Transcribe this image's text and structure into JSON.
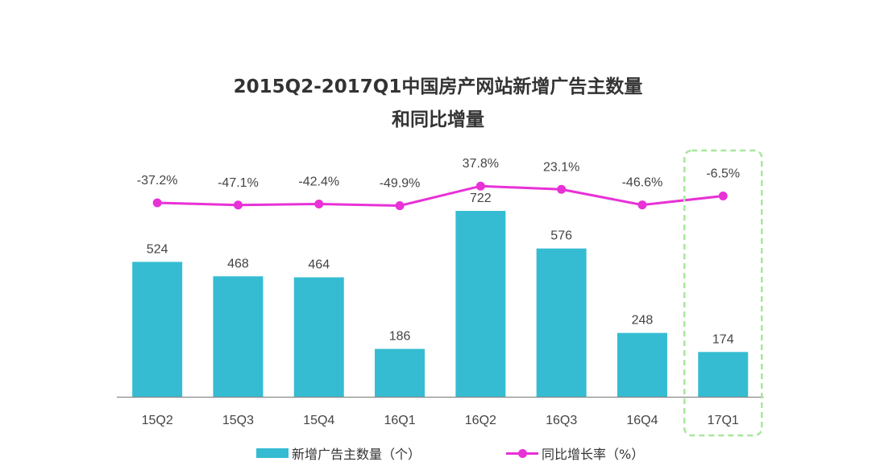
{
  "chart_data": {
    "type": "bar",
    "title": "2015Q2-2017Q1中国房产网站新增广告主数量",
    "subtitle": "和同比增量",
    "categories": [
      "15Q2",
      "15Q3",
      "15Q4",
      "16Q1",
      "16Q2",
      "16Q3",
      "16Q4",
      "17Q1"
    ],
    "series": [
      {
        "name": "新增广告主数量（个）",
        "type": "bar",
        "values": [
          524,
          468,
          464,
          186,
          722,
          576,
          248,
          174
        ],
        "labels": [
          "524",
          "468",
          "464",
          "186",
          "722",
          "576",
          "248",
          "174"
        ],
        "color": "#35bcd2"
      },
      {
        "name": "同比增长率（%）",
        "type": "line",
        "values": [
          -37.2,
          -47.1,
          -42.4,
          -49.9,
          37.8,
          23.1,
          -46.6,
          -6.5
        ],
        "labels": [
          "-37.2%",
          "-47.1%",
          "-42.4%",
          "-49.9%",
          "37.8%",
          "23.1%",
          "-46.6%",
          "-6.5%"
        ],
        "color": "#e831d6"
      }
    ],
    "highlight": {
      "category": "17Q1",
      "style": "dashed-box",
      "color": "#a6e89a"
    },
    "grid": false,
    "legend": "bottom"
  }
}
